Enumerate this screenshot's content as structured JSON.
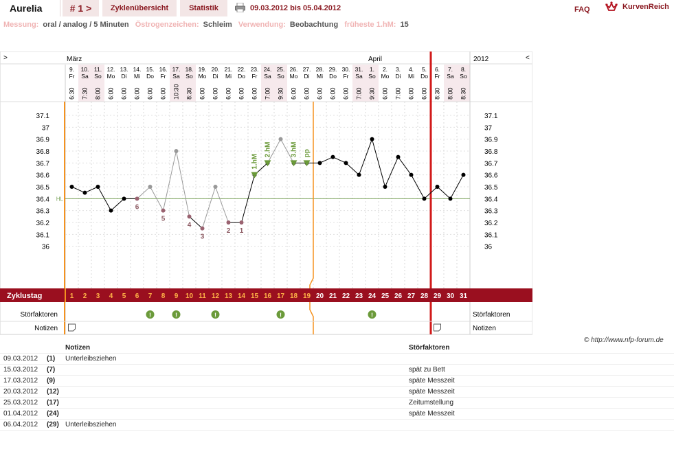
{
  "header": {
    "name": "Aurelia",
    "cycle_nav": "# 1 >",
    "tab_cycles": "Zyklenübersicht",
    "tab_stats": "Statistik",
    "date_range": "09.03.2012 bis 05.04.2012",
    "faq": "FAQ",
    "brand": "KurvenReich"
  },
  "meta": [
    {
      "label": "Messung:",
      "value": "oral / analog / 5 Minuten"
    },
    {
      "label": "Östrogenzeichen:",
      "value": "Schleim"
    },
    {
      "label": "Verwendung:",
      "value": "Beobachtung"
    },
    {
      "label": "früheste 1.hM:",
      "value": "15"
    }
  ],
  "chart_data": {
    "type": "line",
    "nav_left": ">",
    "nav_right": "<",
    "months": [
      "März",
      "April"
    ],
    "year": "2012",
    "days": [
      {
        "d": "9.",
        "wd": "Fr",
        "t": "6:30"
      },
      {
        "d": "10.",
        "wd": "Sa",
        "t": "7:30"
      },
      {
        "d": "11.",
        "wd": "So",
        "t": "8:00"
      },
      {
        "d": "12.",
        "wd": "Mo",
        "t": "6:00"
      },
      {
        "d": "13.",
        "wd": "Di",
        "t": "6:00"
      },
      {
        "d": "14.",
        "wd": "Mi",
        "t": "6:00"
      },
      {
        "d": "15.",
        "wd": "Do",
        "t": "6:00"
      },
      {
        "d": "16.",
        "wd": "Fr",
        "t": "6:00"
      },
      {
        "d": "17.",
        "wd": "Sa",
        "t": "10:30"
      },
      {
        "d": "18.",
        "wd": "So",
        "t": "8:30"
      },
      {
        "d": "19.",
        "wd": "Mo",
        "t": "6:00"
      },
      {
        "d": "20.",
        "wd": "Di",
        "t": "6:00"
      },
      {
        "d": "21.",
        "wd": "Mi",
        "t": "6:00"
      },
      {
        "d": "22.",
        "wd": "Do",
        "t": "6:00"
      },
      {
        "d": "23.",
        "wd": "Fr",
        "t": "6:00"
      },
      {
        "d": "24.",
        "wd": "Sa",
        "t": "7:00"
      },
      {
        "d": "25.",
        "wd": "So",
        "t": "9:30"
      },
      {
        "d": "26.",
        "wd": "Mo",
        "t": "6:00"
      },
      {
        "d": "27.",
        "wd": "Di",
        "t": "6:00"
      },
      {
        "d": "28.",
        "wd": "Mi",
        "t": "6:00"
      },
      {
        "d": "29.",
        "wd": "Do",
        "t": "6:00"
      },
      {
        "d": "30.",
        "wd": "Fr",
        "t": "6:00"
      },
      {
        "d": "31.",
        "wd": "Sa",
        "t": "7:00"
      },
      {
        "d": "1.",
        "wd": "So",
        "t": "9:30"
      },
      {
        "d": "2.",
        "wd": "Mo",
        "t": "6:00"
      },
      {
        "d": "3.",
        "wd": "Di",
        "t": "7:00"
      },
      {
        "d": "4.",
        "wd": "Mi",
        "t": "6:00"
      },
      {
        "d": "5.",
        "wd": "Do",
        "t": "6:00"
      },
      {
        "d": "6.",
        "wd": "Fr",
        "t": "8:30"
      },
      {
        "d": "7.",
        "wd": "Sa",
        "t": "8:00"
      },
      {
        "d": "8.",
        "wd": "So",
        "t": "8:30"
      }
    ],
    "ylim": [
      35.9,
      37.1
    ],
    "yticks": [
      36,
      36.1,
      36.2,
      36.3,
      36.4,
      36.5,
      36.6,
      36.7,
      36.8,
      36.9,
      37,
      37.1
    ],
    "hl_label": "HL",
    "hl_value": 36.4,
    "temps": [
      36.5,
      36.45,
      36.5,
      36.3,
      36.4,
      36.4,
      36.5,
      36.3,
      36.8,
      36.25,
      36.15,
      36.5,
      36.2,
      36.2,
      36.6,
      36.7,
      36.9,
      36.7,
      36.7,
      36.7,
      36.75,
      36.7,
      36.6,
      36.9,
      36.5,
      36.75,
      36.6,
      36.4,
      36.5,
      36.4,
      36.6
    ],
    "grey_points": [
      7,
      9,
      12,
      17
    ],
    "excluded_points": [
      6,
      8,
      10,
      11,
      13,
      14
    ],
    "low_labels": [
      {
        "day": 6,
        "label": "6"
      },
      {
        "day": 8,
        "label": "5"
      },
      {
        "day": 10,
        "label": "4"
      },
      {
        "day": 11,
        "label": "3"
      },
      {
        "day": 13,
        "label": "2"
      },
      {
        "day": 14,
        "label": "1"
      }
    ],
    "high_markers": [
      {
        "day": 15,
        "label": "1.hM"
      },
      {
        "day": 16,
        "label": "2.hM"
      },
      {
        "day": 18,
        "label": "3.hM"
      },
      {
        "day": 19,
        "label": "pp"
      }
    ],
    "cycle_label": "Zyklustag",
    "disturb_label": "Störfaktoren",
    "notes_label": "Notizen",
    "disturb_days": [
      7,
      9,
      12,
      17,
      24
    ],
    "note_days": [
      1,
      29
    ],
    "eval_line_day": 19,
    "cycle_end_day": 28,
    "colors": {
      "accent": "#9a0f1f",
      "orange": "#f5921e",
      "green": "#6b9a3a",
      "line": "#000000",
      "grey": "#999999"
    }
  },
  "credit": "© http://www.nfp-forum.de",
  "table": {
    "col_notes": "Notizen",
    "col_disturb": "Störfaktoren",
    "rows": [
      {
        "date": "09.03.2012",
        "day": "(1)",
        "note": "Unterleibsziehen",
        "disturb": ""
      },
      {
        "date": "15.03.2012",
        "day": "(7)",
        "note": "",
        "disturb": "spät zu Bett"
      },
      {
        "date": "17.03.2012",
        "day": "(9)",
        "note": "",
        "disturb": "späte Messzeit"
      },
      {
        "date": "20.03.2012",
        "day": "(12)",
        "note": "",
        "disturb": "späte Messzeit"
      },
      {
        "date": "25.03.2012",
        "day": "(17)",
        "note": "",
        "disturb": "Zeitumstellung"
      },
      {
        "date": "01.04.2012",
        "day": "(24)",
        "note": "",
        "disturb": "späte Messzeit"
      },
      {
        "date": "06.04.2012",
        "day": "(29)",
        "note": "Unterleibsziehen",
        "disturb": ""
      }
    ]
  }
}
